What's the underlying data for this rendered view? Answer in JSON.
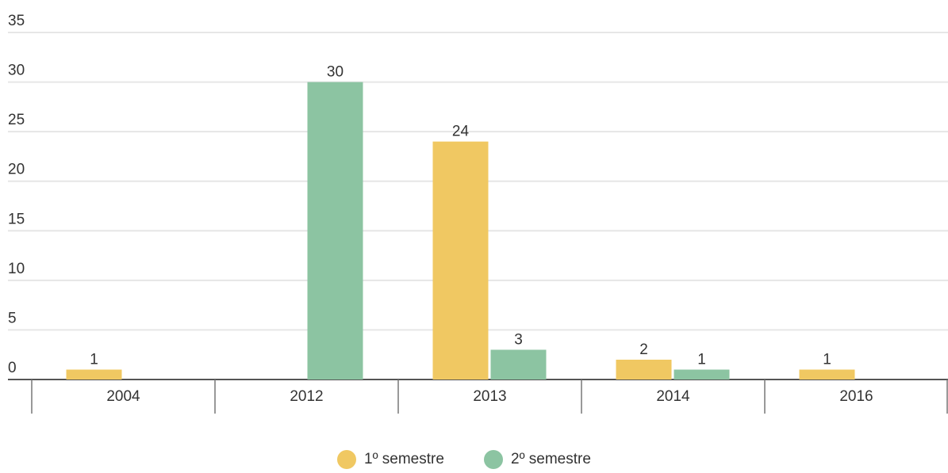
{
  "chart_data": {
    "type": "bar",
    "categories": [
      "2004",
      "2012",
      "2013",
      "2014",
      "2016"
    ],
    "series": [
      {
        "name": "1º semestre",
        "color": "#f0c862",
        "values": [
          1,
          null,
          24,
          2,
          1
        ]
      },
      {
        "name": "2º semestre",
        "color": "#8cc4a2",
        "values": [
          null,
          30,
          3,
          1,
          null
        ]
      }
    ],
    "ylim": [
      0,
      35
    ],
    "yticks": [
      0,
      5,
      10,
      15,
      20,
      25,
      30,
      35
    ],
    "grid": true,
    "legend": "bottom"
  }
}
